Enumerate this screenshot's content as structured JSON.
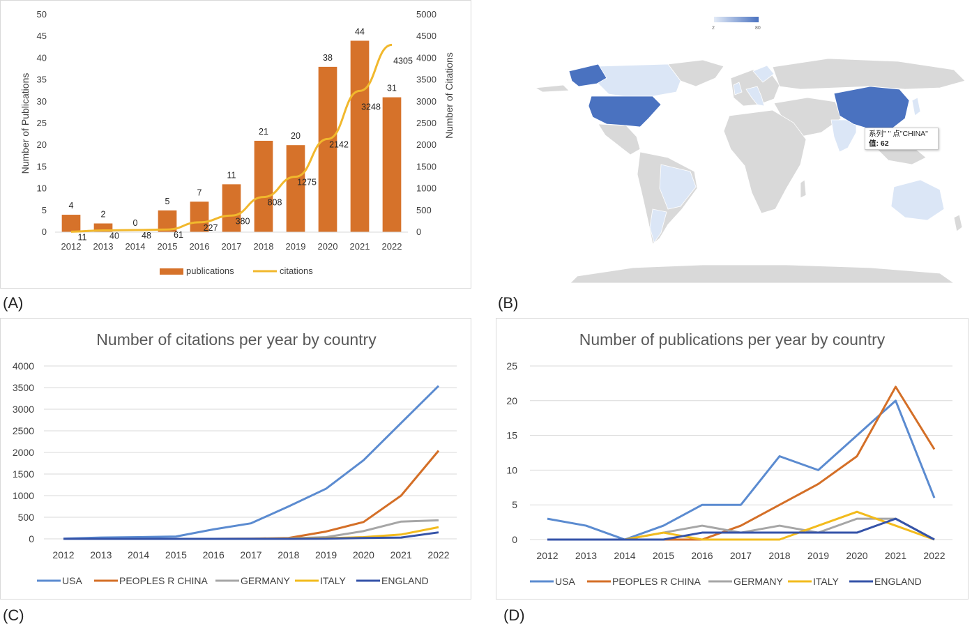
{
  "labels": {
    "a": "(A)",
    "b": "(B)",
    "c": "(C)",
    "d": "(D)"
  },
  "chart_data": [
    {
      "id": "A",
      "type": "bar",
      "categories": [
        "2012",
        "2013",
        "2014",
        "2015",
        "2016",
        "2017",
        "2018",
        "2019",
        "2020",
        "2021",
        "2022"
      ],
      "ylabel": "Number of Publications",
      "y2label": "Number of Citations",
      "ylim": [
        0,
        50
      ],
      "y2lim": [
        0,
        5000
      ],
      "yticks": [
        "0",
        "5",
        "10",
        "15",
        "20",
        "25",
        "30",
        "35",
        "40",
        "45",
        "50"
      ],
      "y2ticks": [
        "0",
        "500",
        "1000",
        "1500",
        "2000",
        "2500",
        "3000",
        "3500",
        "4000",
        "4500",
        "5000"
      ],
      "series": [
        {
          "name": "publications",
          "type": "bar",
          "axis": "left",
          "color": "#d6722a",
          "values": [
            4,
            2,
            0,
            5,
            7,
            11,
            21,
            20,
            38,
            44,
            31
          ]
        },
        {
          "name": "citations",
          "type": "line",
          "axis": "right",
          "color": "#f1b82d",
          "values": [
            11,
            40,
            48,
            61,
            227,
            380,
            808,
            1275,
            2142,
            3248,
            4305
          ]
        }
      ],
      "legend": "bottom"
    },
    {
      "id": "C",
      "type": "line",
      "title": "Number of citations per year by country",
      "categories": [
        "2012",
        "2013",
        "2014",
        "2015",
        "2016",
        "2017",
        "2018",
        "2019",
        "2020",
        "2021",
        "2022"
      ],
      "ylim": [
        0,
        4000
      ],
      "yticks": [
        "0",
        "500",
        "1000",
        "1500",
        "2000",
        "2500",
        "3000",
        "3500",
        "4000"
      ],
      "series": [
        {
          "name": "USA",
          "color": "#5b8bd0",
          "values": [
            5,
            30,
            40,
            55,
            220,
            360,
            750,
            1160,
            1820,
            2680,
            3540
          ]
        },
        {
          "name": "PEOPLES R CHINA",
          "color": "#d46f27",
          "values": [
            0,
            0,
            0,
            0,
            0,
            5,
            20,
            170,
            390,
            1000,
            2040
          ]
        },
        {
          "name": "GERMANY",
          "color": "#a6a6a6",
          "values": [
            0,
            0,
            0,
            0,
            0,
            5,
            10,
            40,
            180,
            400,
            430
          ]
        },
        {
          "name": "ITALY",
          "color": "#f2bb1d",
          "values": [
            0,
            0,
            0,
            0,
            0,
            0,
            5,
            15,
            40,
            100,
            270
          ]
        },
        {
          "name": "ENGLAND",
          "color": "#3553a8",
          "values": [
            0,
            0,
            0,
            0,
            0,
            0,
            0,
            5,
            20,
            30,
            150
          ]
        }
      ],
      "legend": "bottom"
    },
    {
      "id": "D",
      "type": "line",
      "title": "Number of publications per year by country",
      "categories": [
        "2012",
        "2013",
        "2014",
        "2015",
        "2016",
        "2017",
        "2018",
        "2019",
        "2020",
        "2021",
        "2022"
      ],
      "ylim": [
        0,
        25
      ],
      "yticks": [
        "0",
        "5",
        "10",
        "15",
        "20",
        "25"
      ],
      "series": [
        {
          "name": "USA",
          "color": "#5b8bd0",
          "values": [
            3,
            2,
            0,
            2,
            5,
            5,
            12,
            10,
            15,
            20,
            6
          ]
        },
        {
          "name": "PEOPLES R CHINA",
          "color": "#d46f27",
          "values": [
            0,
            0,
            0,
            0,
            0,
            2,
            5,
            8,
            12,
            22,
            13
          ]
        },
        {
          "name": "GERMANY",
          "color": "#a6a6a6",
          "values": [
            0,
            0,
            0,
            1,
            2,
            1,
            2,
            1,
            3,
            3,
            0
          ]
        },
        {
          "name": "ITALY",
          "color": "#f2bb1d",
          "values": [
            0,
            0,
            0,
            1,
            0,
            0,
            0,
            2,
            4,
            2,
            0
          ]
        },
        {
          "name": "ENGLAND",
          "color": "#3553a8",
          "values": [
            0,
            0,
            0,
            0,
            1,
            1,
            1,
            1,
            1,
            3,
            0
          ]
        }
      ],
      "legend": "bottom"
    }
  ],
  "map": {
    "scale_min": "2",
    "scale_max": "80",
    "tooltip_line1": "系列\" \" 点\"CHINA\"",
    "tooltip_line2": "值: 62",
    "colors": {
      "land": "#d9d9d9",
      "dark": "#4a72c0",
      "mid": "#6b8fd0",
      "light": "#dbe6f6"
    }
  }
}
